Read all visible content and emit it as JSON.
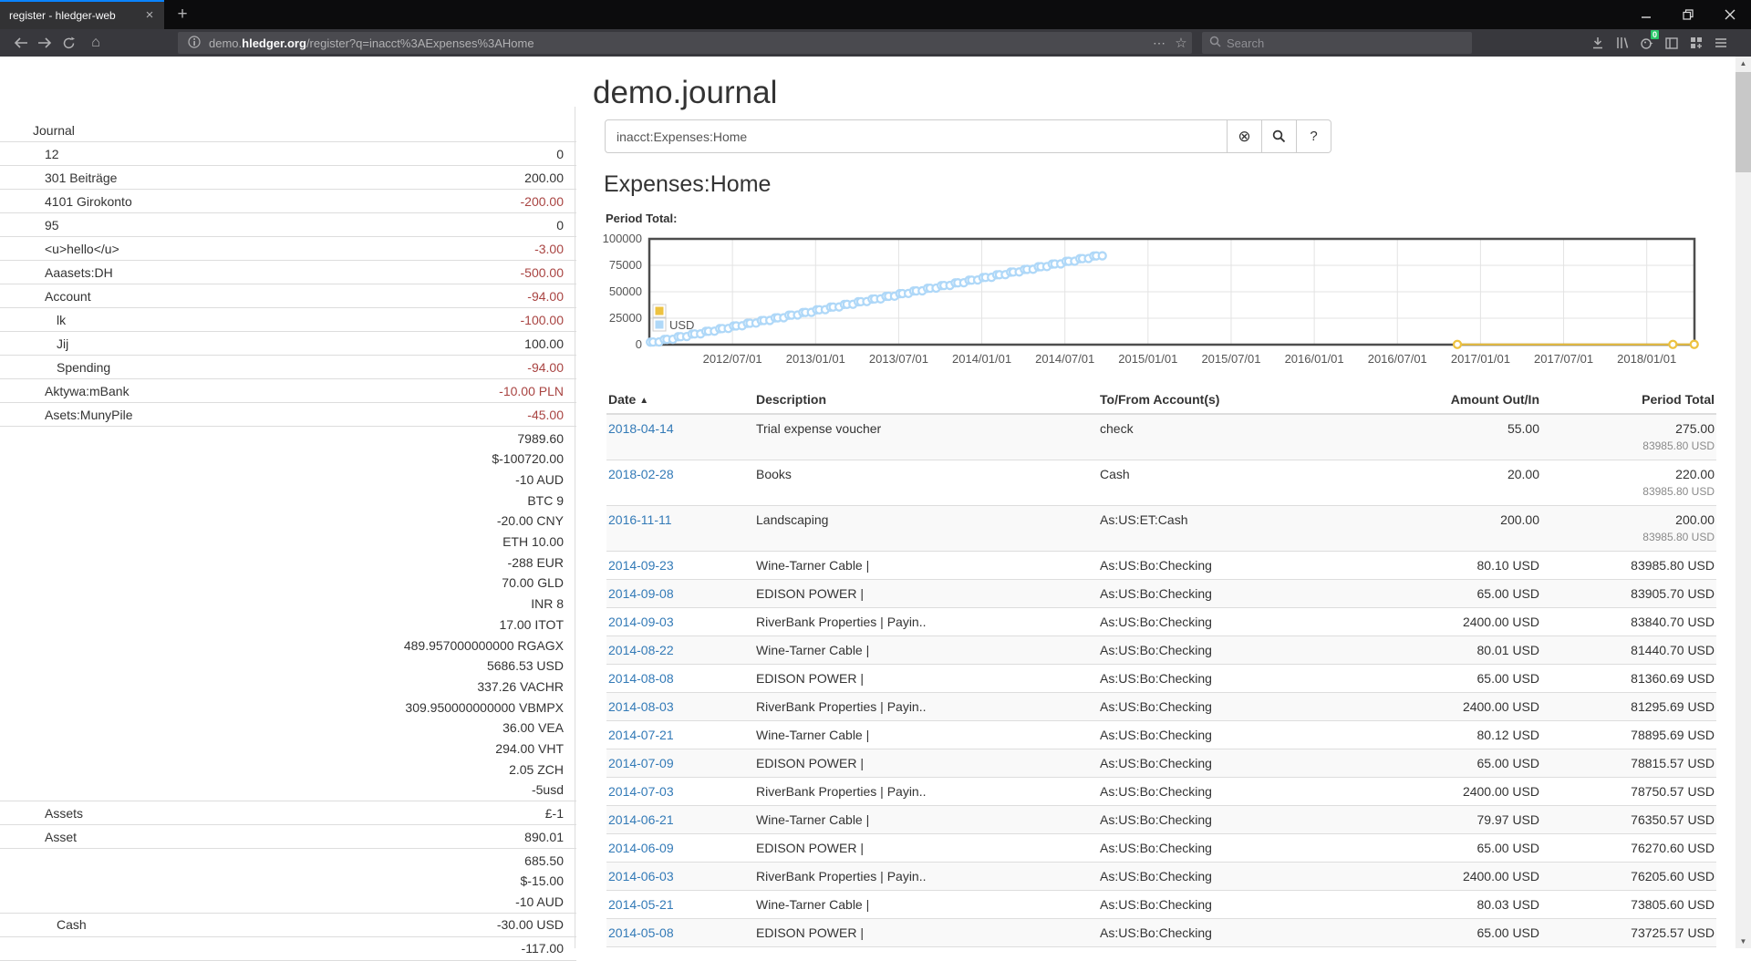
{
  "browser": {
    "tab_title": "register - hledger-web",
    "new_tab_label": "+",
    "url_prefix": "demo.",
    "url_domain": "hledger.org",
    "url_path": "/register?q=inacct%3AExpenses%3AHome",
    "search_placeholder": "Search",
    "extension_badge": "0"
  },
  "page": {
    "title": "demo.journal",
    "query_input": "inacct:Expenses:Home",
    "clear_button": "⊗",
    "help_button": "?",
    "heading": "Expenses:Home",
    "period_label": "Period Total:"
  },
  "sidebar": {
    "rows": [
      {
        "name": "Journal",
        "indent": 0,
        "amounts": []
      },
      {
        "name": "12",
        "indent": 1,
        "amounts": [
          {
            "t": "0",
            "neg": false
          }
        ]
      },
      {
        "name": "301 Beiträge",
        "indent": 1,
        "amounts": [
          {
            "t": "200.00",
            "neg": false
          }
        ]
      },
      {
        "name": "4101 Girokonto",
        "indent": 1,
        "amounts": [
          {
            "t": "-200.00",
            "neg": true
          }
        ]
      },
      {
        "name": "95",
        "indent": 1,
        "amounts": [
          {
            "t": "0",
            "neg": false
          }
        ]
      },
      {
        "name": "<u>hello</u>",
        "indent": 1,
        "amounts": [
          {
            "t": "-3.00",
            "neg": true
          }
        ]
      },
      {
        "name": "Aaasets:DH",
        "indent": 1,
        "amounts": [
          {
            "t": "-500.00",
            "neg": true
          }
        ]
      },
      {
        "name": "Account",
        "indent": 1,
        "amounts": [
          {
            "t": "-94.00",
            "neg": true
          }
        ]
      },
      {
        "name": "lk",
        "indent": 2,
        "amounts": [
          {
            "t": "-100.00",
            "neg": true
          }
        ]
      },
      {
        "name": "Jij",
        "indent": 2,
        "amounts": [
          {
            "t": "100.00",
            "neg": false
          }
        ]
      },
      {
        "name": "Spending",
        "indent": 2,
        "amounts": [
          {
            "t": "-94.00",
            "neg": true
          }
        ]
      },
      {
        "name": "Aktywa:mBank",
        "indent": 1,
        "amounts": [
          {
            "t": "-10.00 PLN",
            "neg": true
          }
        ]
      },
      {
        "name": "Asets:MunyPile",
        "indent": 1,
        "amounts": [
          {
            "t": "-45.00",
            "neg": true
          }
        ]
      },
      {
        "name": "",
        "indent": 1,
        "amounts": [
          {
            "t": "7989.60",
            "neg": false
          },
          {
            "t": "$-100720.00",
            "neg": false
          },
          {
            "t": "-10 AUD",
            "neg": false
          },
          {
            "t": "BTC 9",
            "neg": false
          },
          {
            "t": "-20.00 CNY",
            "neg": false
          },
          {
            "t": "ETH 10.00",
            "neg": false
          },
          {
            "t": "-288 EUR",
            "neg": false
          },
          {
            "t": "70.00 GLD",
            "neg": false
          },
          {
            "t": "INR 8",
            "neg": false
          },
          {
            "t": "17.00 ITOT",
            "neg": false
          },
          {
            "t": "489.957000000000 RGAGX",
            "neg": false
          },
          {
            "t": "5686.53 USD",
            "neg": false
          },
          {
            "t": "337.26 VACHR",
            "neg": false
          },
          {
            "t": "309.950000000000 VBMPX",
            "neg": false
          },
          {
            "t": "36.00 VEA",
            "neg": false
          },
          {
            "t": "294.00 VHT",
            "neg": false
          },
          {
            "t": "2.05 ZCH",
            "neg": false
          },
          {
            "t": "-5usd",
            "neg": false
          }
        ]
      },
      {
        "name": "Assets",
        "indent": 1,
        "amounts": [
          {
            "t": "£-1",
            "neg": false
          }
        ]
      },
      {
        "name": "Asset",
        "indent": 1,
        "amounts": [
          {
            "t": "890.01",
            "neg": false
          }
        ]
      },
      {
        "name": "",
        "indent": 1,
        "amounts": [
          {
            "t": "685.50",
            "neg": false
          },
          {
            "t": "$-15.00",
            "neg": false
          },
          {
            "t": "-10 AUD",
            "neg": false
          }
        ]
      },
      {
        "name": "Cash",
        "indent": 2,
        "amounts": [
          {
            "t": "-30.00 USD",
            "neg": false
          }
        ]
      },
      {
        "name": "",
        "indent": 1,
        "amounts": [
          {
            "t": "-117.00",
            "neg": false
          }
        ]
      }
    ]
  },
  "chart_data": {
    "type": "line",
    "title": "Period Total:",
    "legend_position": "bottom-left-inside",
    "grid": true,
    "x_axis": {
      "ticks": [
        "2012/07/01",
        "2013/01/01",
        "2013/07/01",
        "2014/01/01",
        "2014/07/01",
        "2015/01/01",
        "2015/07/01",
        "2016/01/01",
        "2016/07/01",
        "2017/01/01",
        "2017/07/01",
        "2018/01/01"
      ],
      "domain": [
        "2012-01-01",
        "2018-04-14"
      ]
    },
    "y_axis": {
      "ticks": [
        0,
        25000,
        50000,
        75000,
        100000
      ],
      "range": [
        0,
        100000
      ]
    },
    "legend": [
      {
        "label": "",
        "color": "#edc240"
      },
      {
        "label": "USD",
        "color": "#afd8f8"
      }
    ],
    "series": [
      {
        "name": "USD",
        "color": "#afd8f8",
        "description": "cumulative USD running total, ~3 transactions per month (2400.00 + 65.00 + ~80.04), linear ramp",
        "generator": {
          "start": "2012-01",
          "months": 33,
          "day_fractions": [
            0.08,
            0.27,
            0.7
          ],
          "amounts": [
            2400,
            65,
            80.04
          ],
          "final_total": 83985.8
        }
      },
      {
        "name": "",
        "color": "#edc240",
        "points": [
          [
            "2016-11-11",
            200
          ],
          [
            "2018-02-28",
            220
          ],
          [
            "2018-04-14",
            275
          ]
        ]
      }
    ]
  },
  "register_table": {
    "columns": [
      "Date",
      "Description",
      "To/From Account(s)",
      "Amount Out/In",
      "Period Total"
    ],
    "sort_caret": "▲",
    "rows": [
      {
        "date": "2018-04-14",
        "description": "Trial expense voucher",
        "account": "check",
        "amount": "55.00",
        "total": "275.00",
        "total2": "83985.80 USD"
      },
      {
        "date": "2018-02-28",
        "description": "Books",
        "account": "Cash",
        "amount": "20.00",
        "total": "220.00",
        "total2": "83985.80 USD"
      },
      {
        "date": "2016-11-11",
        "description": "Landscaping",
        "account": "As:US:ET:Cash",
        "amount": "200.00",
        "total": "200.00",
        "total2": "83985.80 USD"
      },
      {
        "date": "2014-09-23",
        "description": "Wine-Tarner Cable |",
        "account": "As:US:Bo:Checking",
        "amount": "80.10 USD",
        "total": "83985.80 USD"
      },
      {
        "date": "2014-09-08",
        "description": "EDISON POWER |",
        "account": "As:US:Bo:Checking",
        "amount": "65.00 USD",
        "total": "83905.70 USD"
      },
      {
        "date": "2014-09-03",
        "description": "RiverBank Properties | Payin..",
        "account": "As:US:Bo:Checking",
        "amount": "2400.00 USD",
        "total": "83840.70 USD"
      },
      {
        "date": "2014-08-22",
        "description": "Wine-Tarner Cable |",
        "account": "As:US:Bo:Checking",
        "amount": "80.01 USD",
        "total": "81440.70 USD"
      },
      {
        "date": "2014-08-08",
        "description": "EDISON POWER |",
        "account": "As:US:Bo:Checking",
        "amount": "65.00 USD",
        "total": "81360.69 USD"
      },
      {
        "date": "2014-08-03",
        "description": "RiverBank Properties | Payin..",
        "account": "As:US:Bo:Checking",
        "amount": "2400.00 USD",
        "total": "81295.69 USD"
      },
      {
        "date": "2014-07-21",
        "description": "Wine-Tarner Cable |",
        "account": "As:US:Bo:Checking",
        "amount": "80.12 USD",
        "total": "78895.69 USD"
      },
      {
        "date": "2014-07-09",
        "description": "EDISON POWER |",
        "account": "As:US:Bo:Checking",
        "amount": "65.00 USD",
        "total": "78815.57 USD"
      },
      {
        "date": "2014-07-03",
        "description": "RiverBank Properties | Payin..",
        "account": "As:US:Bo:Checking",
        "amount": "2400.00 USD",
        "total": "78750.57 USD"
      },
      {
        "date": "2014-06-21",
        "description": "Wine-Tarner Cable |",
        "account": "As:US:Bo:Checking",
        "amount": "79.97 USD",
        "total": "76350.57 USD"
      },
      {
        "date": "2014-06-09",
        "description": "EDISON POWER |",
        "account": "As:US:Bo:Checking",
        "amount": "65.00 USD",
        "total": "76270.60 USD"
      },
      {
        "date": "2014-06-03",
        "description": "RiverBank Properties | Payin..",
        "account": "As:US:Bo:Checking",
        "amount": "2400.00 USD",
        "total": "76205.60 USD"
      },
      {
        "date": "2014-05-21",
        "description": "Wine-Tarner Cable |",
        "account": "As:US:Bo:Checking",
        "amount": "80.03 USD",
        "total": "73805.60 USD"
      },
      {
        "date": "2014-05-08",
        "description": "EDISON POWER |",
        "account": "As:US:Bo:Checking",
        "amount": "65.00 USD",
        "total": "73725.57 USD"
      }
    ]
  },
  "colors": {
    "link_blue": "#337ab7",
    "negative_red": "#a94442",
    "series_yellow": "#edc240",
    "series_blue": "#afd8f8",
    "chart_border": "#4d4d4d",
    "grid_line": "#e3e3e3",
    "axis_text": "#545454",
    "row_divider": "#dddddd",
    "stripe_bg": "#f9f9f9",
    "chrome_dark": "#0c0c0d",
    "toolbar_dark": "#38383d",
    "tab_accent": "#0a84ff"
  }
}
